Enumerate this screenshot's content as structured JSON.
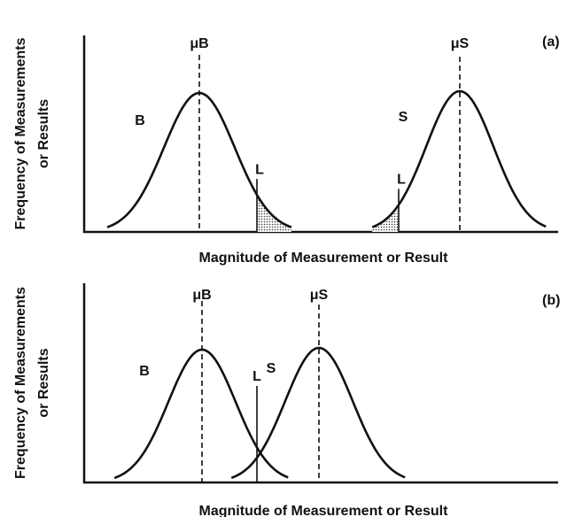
{
  "panels": [
    {
      "tag": "(a)",
      "y_label": [
        "Frequency of Measurements",
        "or Results"
      ],
      "x_label": "Magnitude of Measurement or Result",
      "curves": [
        {
          "label": "B",
          "mean_label": "μB",
          "limit_label": "L"
        },
        {
          "label": "S",
          "mean_label": "μS",
          "limit_label": "L"
        }
      ]
    },
    {
      "tag": "(b)",
      "y_label": [
        "Frequency of Measurements",
        "or Results"
      ],
      "x_label": "Magnitude of Measurement or Result",
      "curves": [
        {
          "label": "B",
          "mean_label": "μB"
        },
        {
          "label": "S",
          "mean_label": "μS"
        }
      ],
      "limit_label": "L"
    }
  ]
}
